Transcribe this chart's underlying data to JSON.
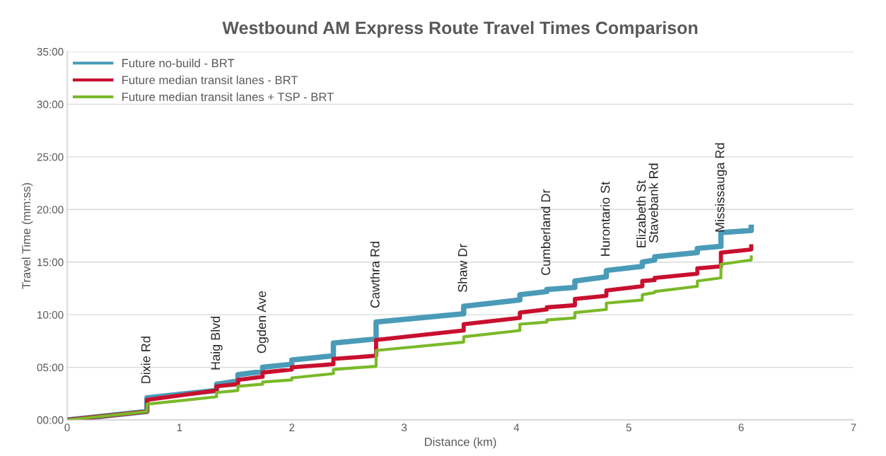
{
  "chart_data": {
    "type": "line",
    "title": "Westbound AM Express Route Travel Times Comparison",
    "xlabel": "Distance (km)",
    "ylabel": "Travel Time (mm:ss)",
    "xlim": [
      0,
      7
    ],
    "xticks": [
      0,
      1,
      2,
      3,
      4,
      5,
      6,
      7
    ],
    "ylim": [
      0,
      35
    ],
    "yticks": [
      {
        "value": 0,
        "label": "00:00"
      },
      {
        "value": 5,
        "label": "05:00"
      },
      {
        "value": 10,
        "label": "10:00"
      },
      {
        "value": 15,
        "label": "15:00"
      },
      {
        "value": 20,
        "label": "20:00"
      },
      {
        "value": 25,
        "label": "25:00"
      },
      {
        "value": 30,
        "label": "30:00"
      },
      {
        "value": 35,
        "label": "35:00"
      }
    ],
    "grid": "y",
    "legend": "top left",
    "marker": "none",
    "line_style": "solid",
    "series": [
      {
        "name": "Future no-build - BRT",
        "color": "#4a9bb8",
        "x": [
          0,
          0.71,
          0.71,
          1.33,
          1.33,
          1.52,
          1.52,
          1.74,
          1.74,
          2.0,
          2.0,
          2.37,
          2.37,
          2.75,
          2.75,
          3.53,
          3.53,
          4.03,
          4.03,
          4.27,
          4.27,
          4.52,
          4.52,
          4.8,
          4.8,
          5.12,
          5.12,
          5.23,
          5.23,
          5.61,
          5.61,
          5.82,
          5.82,
          6.09,
          6.09
        ],
        "values": [
          0,
          0.8,
          2.1,
          2.8,
          3.4,
          3.7,
          4.3,
          4.6,
          5.0,
          5.3,
          5.7,
          6.1,
          7.3,
          7.7,
          9.3,
          10.1,
          10.8,
          11.4,
          11.9,
          12.2,
          12.4,
          12.6,
          13.2,
          13.6,
          14.2,
          14.6,
          15.0,
          15.2,
          15.5,
          15.9,
          16.3,
          16.5,
          17.8,
          18.0,
          18.3
        ]
      },
      {
        "name": "Future median transit lanes - BRT",
        "color": "#c8102e",
        "x": [
          0,
          0.71,
          0.71,
          1.33,
          1.33,
          1.52,
          1.52,
          1.74,
          1.74,
          2.0,
          2.0,
          2.37,
          2.37,
          2.75,
          2.75,
          3.53,
          3.53,
          4.03,
          4.03,
          4.27,
          4.27,
          4.52,
          4.52,
          4.8,
          4.8,
          5.12,
          5.12,
          5.23,
          5.23,
          5.61,
          5.61,
          5.82,
          5.82,
          6.09,
          6.09
        ],
        "values": [
          0,
          0.8,
          1.9,
          2.8,
          3.2,
          3.4,
          3.8,
          4.1,
          4.5,
          4.8,
          5.0,
          5.3,
          5.8,
          6.1,
          7.6,
          8.5,
          9.1,
          9.7,
          10.2,
          10.5,
          10.7,
          10.9,
          11.5,
          11.8,
          12.3,
          12.7,
          13.2,
          13.3,
          13.5,
          13.9,
          14.4,
          14.6,
          15.9,
          16.2,
          16.5
        ]
      },
      {
        "name": "Future median transit lanes + TSP - BRT",
        "color": "#7ab929",
        "x": [
          0,
          0.71,
          0.71,
          1.33,
          1.33,
          1.52,
          1.52,
          1.74,
          1.74,
          2.0,
          2.0,
          2.37,
          2.37,
          2.75,
          2.75,
          3.53,
          3.53,
          4.03,
          4.03,
          4.27,
          4.27,
          4.52,
          4.52,
          4.8,
          4.8,
          5.12,
          5.12,
          5.23,
          5.23,
          5.61,
          5.61,
          5.82,
          5.82,
          6.09,
          6.09
        ],
        "values": [
          0,
          0.8,
          1.5,
          2.2,
          2.6,
          2.8,
          3.2,
          3.4,
          3.6,
          3.8,
          4.0,
          4.4,
          4.8,
          5.1,
          6.6,
          7.4,
          7.9,
          8.5,
          9.1,
          9.3,
          9.5,
          9.7,
          10.2,
          10.5,
          11.1,
          11.4,
          11.9,
          12.1,
          12.2,
          12.7,
          13.2,
          13.5,
          14.8,
          15.2,
          15.5
        ]
      }
    ],
    "annotations": [
      {
        "text": "Dixie Rd",
        "x": 0.71,
        "y": 2.1
      },
      {
        "text": "Haig Blvd",
        "x": 1.33,
        "y": 3.4
      },
      {
        "text": "Ogden Ave",
        "x": 1.74,
        "y": 5.0
      },
      {
        "text": "Cawthra Rd",
        "x": 2.75,
        "y": 9.3
      },
      {
        "text": "Shaw Dr",
        "x": 3.53,
        "y": 10.8
      },
      {
        "text": "Cumberland Dr",
        "x": 4.27,
        "y": 12.4
      },
      {
        "text": "Hurontario St",
        "x": 4.8,
        "y": 14.2
      },
      {
        "text": "Elizabeth St",
        "x": 5.12,
        "y": 15.0
      },
      {
        "text": "Stavebank Rd",
        "x": 5.23,
        "y": 15.5
      },
      {
        "text": "Mississauga Rd",
        "x": 5.82,
        "y": 16.5
      }
    ]
  }
}
